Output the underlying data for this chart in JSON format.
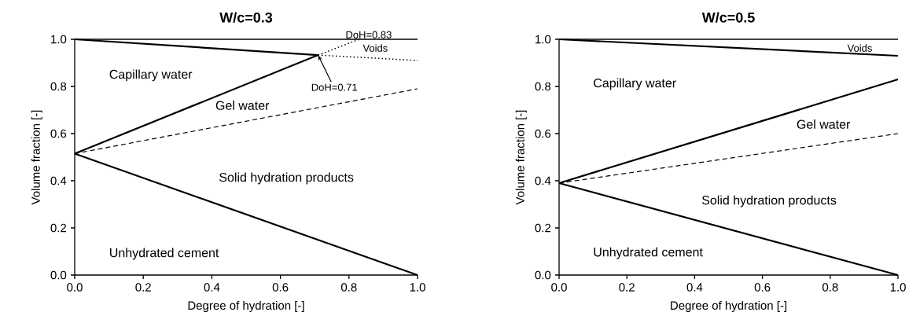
{
  "chart_data": [
    {
      "type": "line",
      "title": "W/c=0.3",
      "xlabel": "Degree of hydration [-]",
      "ylabel": "Volume fraction [-]",
      "xlim": [
        0,
        1
      ],
      "ylim": [
        0,
        1
      ],
      "xticks": [
        {
          "value": 0,
          "label": "0.0"
        },
        {
          "value": 0.2,
          "label": "0.2"
        },
        {
          "value": 0.4,
          "label": "0.4"
        },
        {
          "value": 0.6,
          "label": "0.6"
        },
        {
          "value": 0.8,
          "label": "0.8"
        },
        {
          "value": 1,
          "label": "1.0"
        }
      ],
      "yticks": [
        {
          "value": 0,
          "label": "0.0"
        },
        {
          "value": 0.2,
          "label": "0.2"
        },
        {
          "value": 0.4,
          "label": "0.4"
        },
        {
          "value": 0.6,
          "label": "0.6"
        },
        {
          "value": 0.8,
          "label": "0.8"
        },
        {
          "value": 1,
          "label": "1.0"
        }
      ],
      "marker": "none",
      "series": [
        {
          "color": "#000000",
          "line_style": "solid",
          "x": [
            0,
            0.71
          ],
          "values": [
            1.0,
            0.933
          ]
        },
        {
          "color": "#000000",
          "line_style": "solid",
          "x": [
            0,
            0.71
          ],
          "values": [
            0.515,
            0.933
          ]
        },
        {
          "color": "#000000",
          "line_style": "dashed",
          "x": [
            0,
            1
          ],
          "values": [
            0.515,
            0.79
          ]
        },
        {
          "color": "#000000",
          "line_style": "dotted",
          "x": [
            0.71,
            0.83
          ],
          "values": [
            0.933,
            1.0
          ]
        },
        {
          "color": "#000000",
          "line_style": "dotted",
          "x": [
            0.71,
            1
          ],
          "values": [
            0.933,
            0.91
          ]
        },
        {
          "color": "#000000",
          "line_style": "solid",
          "x": [
            0,
            1
          ],
          "values": [
            0.515,
            0
          ]
        }
      ],
      "ref_lines": [
        {
          "axis": "y",
          "value": 1.0,
          "color": "#000000",
          "line_style": "solid"
        }
      ],
      "annotations": [
        "Capillary water",
        "Gel water",
        "Solid hydration products",
        "Unhydrated cement",
        "Voids",
        {
          "text": "DoH=0.83",
          "x": 0.83,
          "y": 1.0
        },
        {
          "text": "DoH=0.71",
          "x": 0.71,
          "y": 0.933
        }
      ]
    },
    {
      "type": "line",
      "title": "W/c=0.5",
      "xlabel": "Degree of hydration [-]",
      "ylabel": "Volume fraction [-]",
      "xlim": [
        0,
        1
      ],
      "ylim": [
        0,
        1
      ],
      "xticks": [
        {
          "value": 0,
          "label": "0.0"
        },
        {
          "value": 0.2,
          "label": "0.2"
        },
        {
          "value": 0.4,
          "label": "0.4"
        },
        {
          "value": 0.6,
          "label": "0.6"
        },
        {
          "value": 0.8,
          "label": "0.8"
        },
        {
          "value": 1,
          "label": "1.0"
        }
      ],
      "yticks": [
        {
          "value": 0,
          "label": "0.0"
        },
        {
          "value": 0.2,
          "label": "0.2"
        },
        {
          "value": 0.4,
          "label": "0.4"
        },
        {
          "value": 0.6,
          "label": "0.6"
        },
        {
          "value": 0.8,
          "label": "0.8"
        },
        {
          "value": 1,
          "label": "1.0"
        }
      ],
      "marker": "none",
      "series": [
        {
          "color": "#000000",
          "line_style": "solid",
          "x": [
            0,
            1
          ],
          "values": [
            1.0,
            0.93
          ]
        },
        {
          "color": "#000000",
          "line_style": "solid",
          "x": [
            0,
            1
          ],
          "values": [
            0.39,
            0.83
          ]
        },
        {
          "color": "#000000",
          "line_style": "dashed",
          "x": [
            0,
            1
          ],
          "values": [
            0.39,
            0.6
          ]
        },
        {
          "color": "#000000",
          "line_style": "solid",
          "x": [
            0,
            1
          ],
          "values": [
            0.39,
            0
          ]
        }
      ],
      "ref_lines": [
        {
          "axis": "y",
          "value": 1.0,
          "color": "#000000",
          "line_style": "solid"
        }
      ],
      "annotations": [
        "Capillary water",
        "Gel water",
        "Solid hydration products",
        "Unhydrated cement",
        "Voids"
      ]
    }
  ]
}
